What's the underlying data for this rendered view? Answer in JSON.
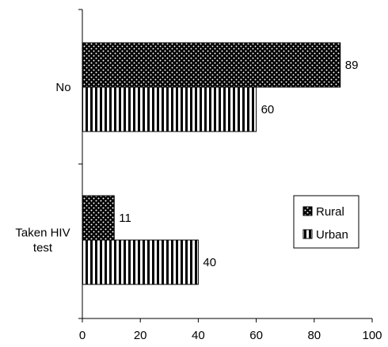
{
  "chart_data": {
    "type": "bar",
    "orientation": "horizontal",
    "categories": [
      "No",
      [
        "Taken HIV",
        "test"
      ]
    ],
    "series": [
      {
        "name": "Rural",
        "values": [
          89,
          11
        ],
        "pattern": "dots"
      },
      {
        "name": "Urban",
        "values": [
          60,
          40
        ],
        "pattern": "vertical-stripes"
      }
    ],
    "xlim": [
      0,
      100
    ],
    "xticks": [
      0,
      20,
      40,
      60,
      80,
      100
    ],
    "data_labels": true,
    "grid": false,
    "legend": {
      "position": "right"
    }
  }
}
